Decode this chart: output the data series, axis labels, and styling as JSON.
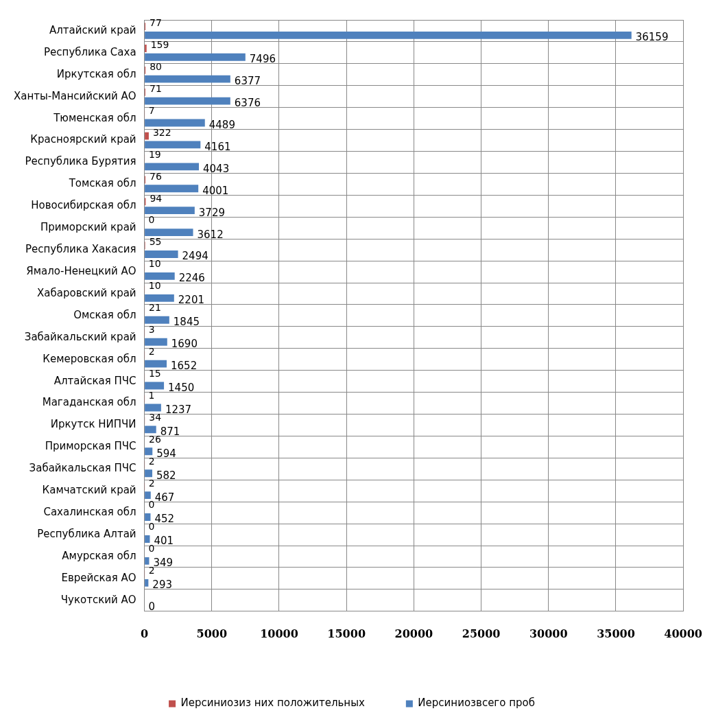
{
  "chart_data": {
    "type": "bar",
    "orientation": "horizontal",
    "categories": [
      "Алтайский край",
      "Республика Саха",
      "Иркутская обл",
      "Ханты-Мансийский АО",
      "Тюменская обл",
      "Красноярский край",
      "Республика Бурятия",
      "Томская обл",
      "Новосибирская обл",
      "Приморский край",
      "Республика Хакасия",
      "Ямало-Ненецкий АО",
      "Хабаровский край",
      "Омская обл",
      "Забайкальский край",
      "Кемеровская обл",
      "Алтайская ПЧС",
      "Магаданская обл",
      "Иркутск НИПЧИ",
      "Приморская ПЧС",
      "Забайкальская ПЧС",
      "Камчатский край",
      "Сахалинская обл",
      "Республика Алтай",
      "Амурская обл",
      "Еврейская АО",
      "Чукотский АО"
    ],
    "series": [
      {
        "name": "Иерсиниозиз них положительных",
        "color": "#c0504d",
        "values": [
          77,
          159,
          80,
          71,
          7,
          322,
          19,
          76,
          94,
          0,
          55,
          10,
          10,
          21,
          3,
          2,
          15,
          1,
          34,
          26,
          2,
          2,
          0,
          0,
          0,
          2,
          null
        ]
      },
      {
        "name": "Иерсиниозвсего проб",
        "color": "#4f81bd",
        "values": [
          36159,
          7496,
          6377,
          6376,
          4489,
          4161,
          4043,
          4001,
          3729,
          3612,
          2494,
          2246,
          2201,
          1845,
          1690,
          1652,
          1450,
          1237,
          871,
          594,
          582,
          467,
          452,
          401,
          349,
          293,
          0
        ]
      }
    ],
    "xlim": [
      0,
      40000
    ],
    "xticks": [
      0,
      5000,
      10000,
      15000,
      20000,
      25000,
      30000,
      35000,
      40000
    ],
    "grid": true,
    "legend": "bottom",
    "data_labels": true
  }
}
